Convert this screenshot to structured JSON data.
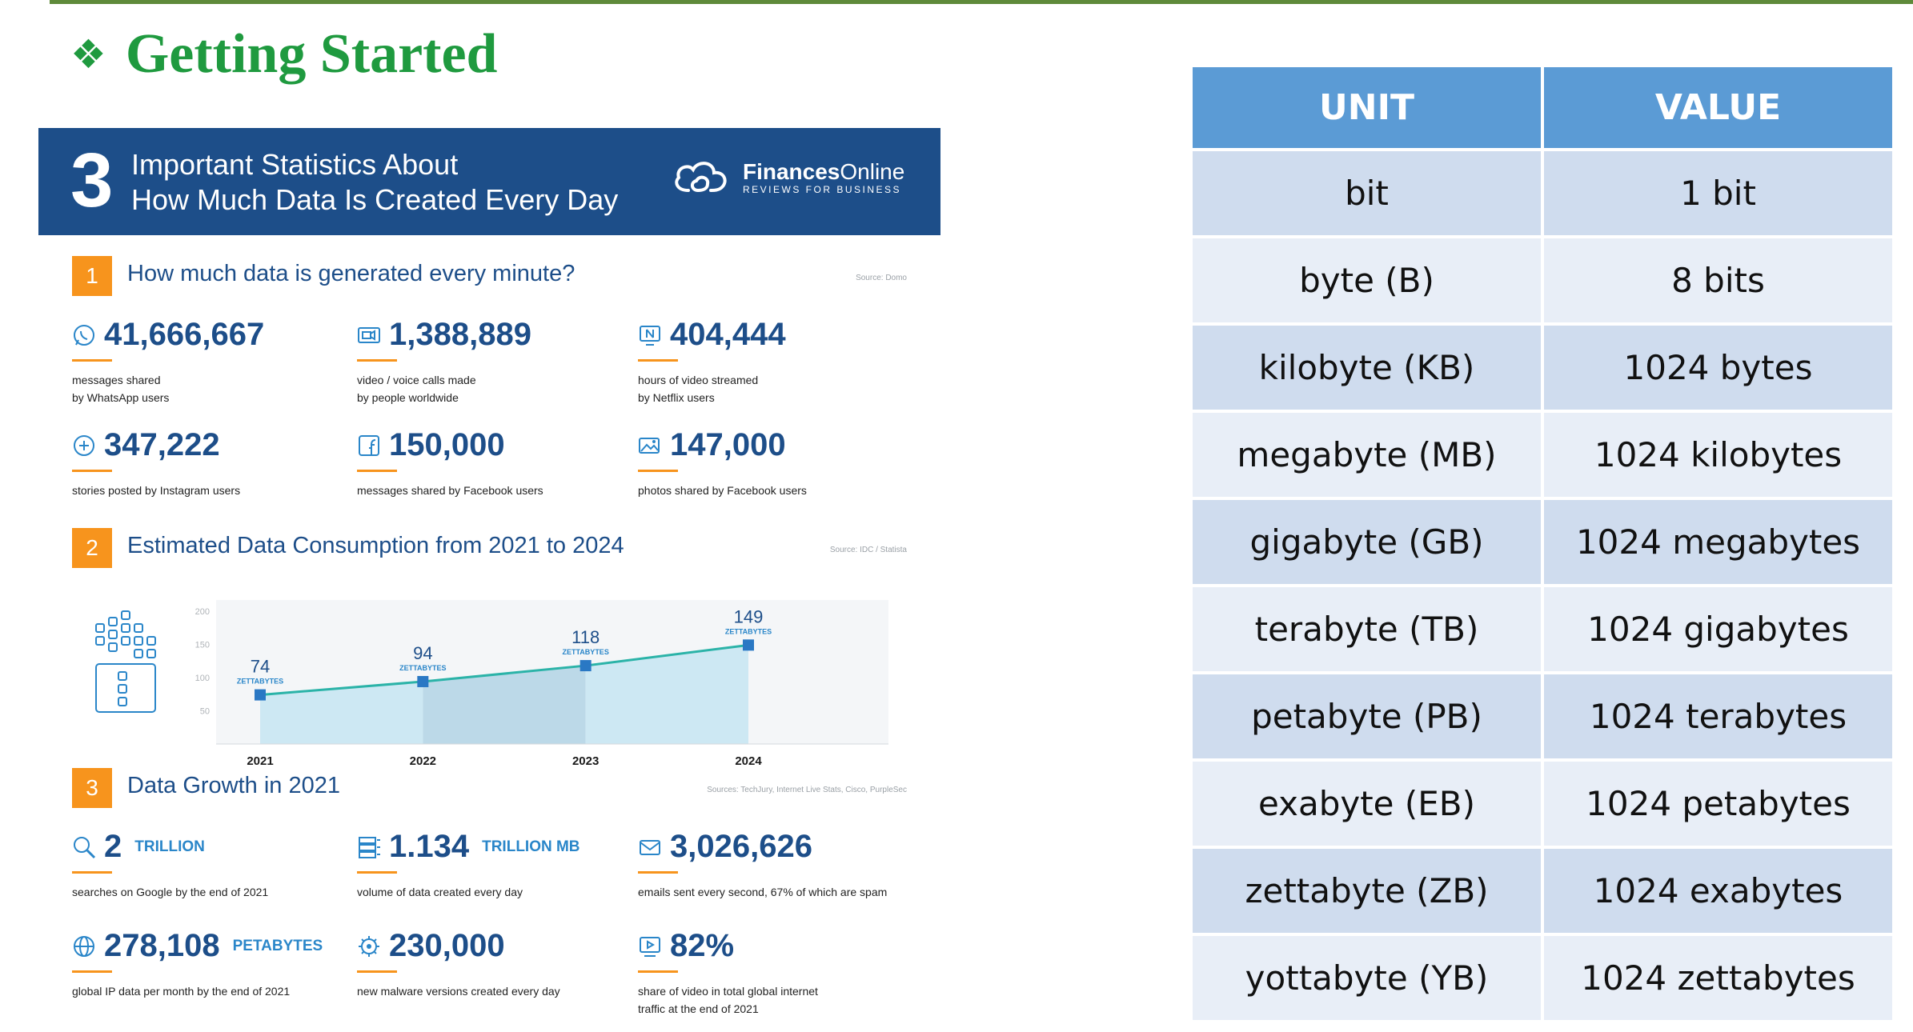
{
  "slide": {
    "title": "Getting Started",
    "bullet_icon": "diamond-bullet-icon",
    "title_color": "#1f9a3f"
  },
  "infographic": {
    "header": {
      "number": "3",
      "line1": "Important Statistics About",
      "line2": "How Much Data Is Created Every Day",
      "logo_bold": "Finances",
      "logo_rest": "Online",
      "logo_tagline": "REVIEWS FOR BUSINESS"
    },
    "section1": {
      "number": "1",
      "title": "How much data is generated every minute?",
      "source": "Source: Domo",
      "stats": [
        {
          "icon": "whatsapp-icon",
          "value": "41,666,667",
          "label": "messages shared\nby WhatsApp users"
        },
        {
          "icon": "video-call-icon",
          "value": "1,388,889",
          "label": "video / voice calls made\nby people worldwide"
        },
        {
          "icon": "netflix-icon",
          "value": "404,444",
          "label": "hours of video streamed\nby Netflix users"
        },
        {
          "icon": "plus-circle-icon",
          "value": "347,222",
          "label": "stories posted by Instagram users"
        },
        {
          "icon": "facebook-icon",
          "value": "150,000",
          "label": "messages shared by Facebook users"
        },
        {
          "icon": "photo-icon",
          "value": "147,000",
          "label": "photos shared by Facebook users"
        }
      ]
    },
    "section2": {
      "number": "2",
      "title": "Estimated Data Consumption from 2021 to 2024",
      "source": "Source: IDC / Statista"
    },
    "section3": {
      "number": "3",
      "title": "Data Growth in 2021",
      "source": "Sources: TechJury, Internet Live Stats, Cisco, PurpleSec",
      "stats": [
        {
          "icon": "search-icon",
          "value": "2",
          "unit": "TRILLION",
          "label": "searches on Google by the end of 2021"
        },
        {
          "icon": "database-icon",
          "value": "1.134",
          "unit": "TRILLION MB",
          "label": "volume of data created every day"
        },
        {
          "icon": "email-icon",
          "value": "3,026,626",
          "unit": "",
          "label": "emails sent every second, 67% of which are spam"
        },
        {
          "icon": "globe-icon",
          "value": "278,108",
          "unit": "PETABYTES",
          "label": "global IP data per month by the end of 2021"
        },
        {
          "icon": "virus-icon",
          "value": "230,000",
          "unit": "",
          "label": "new malware versions created every day"
        },
        {
          "icon": "play-icon",
          "value": "82%",
          "unit": "",
          "label": "share of video in total global internet\ntraffic at the end of 2021"
        }
      ]
    }
  },
  "chart_data": {
    "type": "area",
    "title": "Estimated Data Consumption from 2021 to 2024",
    "x": [
      "2021",
      "2022",
      "2023",
      "2024"
    ],
    "values": [
      74,
      94,
      118,
      149
    ],
    "data_label_unit": "ZETTABYTES",
    "yticks": [
      50,
      100,
      150,
      200
    ],
    "ylim": [
      0,
      200
    ],
    "grid": false,
    "colors": {
      "line": "#2bb3a8",
      "fill": "#cde8f3",
      "fill_alt": "#bcd9e8",
      "marker": "#2a78c4"
    }
  },
  "table": {
    "headers": [
      "UNIT",
      "VALUE"
    ],
    "rows": [
      [
        "bit",
        "1 bit"
      ],
      [
        "byte (B)",
        "8 bits"
      ],
      [
        "kilobyte (KB)",
        "1024 bytes"
      ],
      [
        "megabyte (MB)",
        "1024 kilobytes"
      ],
      [
        "gigabyte (GB)",
        "1024 megabytes"
      ],
      [
        "terabyte (TB)",
        "1024 gigabytes"
      ],
      [
        "petabyte (PB)",
        "1024 terabytes"
      ],
      [
        "exabyte (EB)",
        "1024 petabytes"
      ],
      [
        "zettabyte (ZB)",
        "1024 exabytes"
      ],
      [
        "yottabyte (YB)",
        "1024 zettabytes"
      ]
    ],
    "colors": {
      "header": "#5b9bd5",
      "row_odd": "#cfdcee",
      "row_even": "#e8eef7"
    }
  }
}
